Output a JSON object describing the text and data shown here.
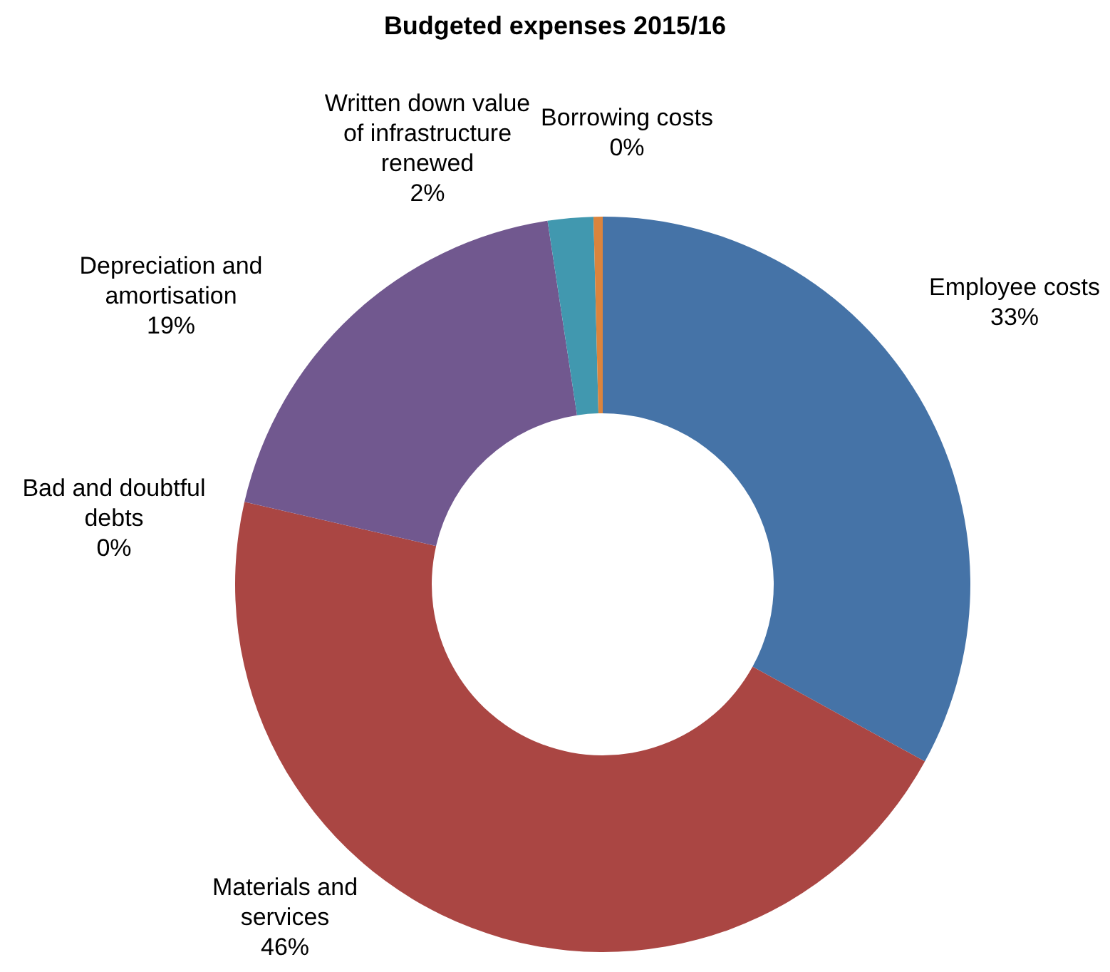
{
  "chart_data": {
    "type": "donut",
    "title": "Budgeted expenses 2015/16",
    "categories": [
      "Employee costs",
      "Materials and services",
      "Bad and doubtful debts",
      "Depreciation and amortisation",
      "Written down value of infrastructure renewed",
      "Borrowing costs"
    ],
    "values": [
      33,
      45.6,
      0,
      19,
      2,
      0.4
    ],
    "value_labels": [
      "33%",
      "46%",
      "0%",
      "19%",
      "2%",
      "0%"
    ],
    "colors": [
      "#4573a7",
      "#aa4643",
      "#89a54e",
      "#71588f",
      "#4198af",
      "#db843d"
    ]
  }
}
